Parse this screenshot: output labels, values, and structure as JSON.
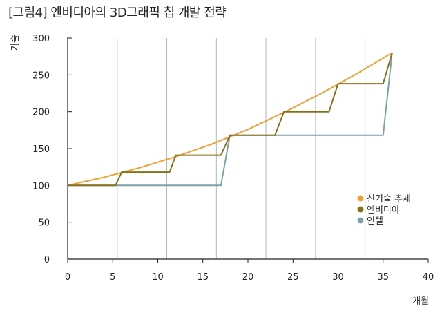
{
  "header": {
    "figure_label": "[그림4]",
    "title": "엔비디아의 3D그래픽 칩 개발 전략"
  },
  "chart_data": {
    "type": "line",
    "xlabel": "개월",
    "ylabel": "기술",
    "xlim": [
      0,
      40
    ],
    "ylim": [
      0,
      300
    ],
    "xticks": [
      0,
      5,
      10,
      15,
      20,
      25,
      30,
      35,
      40
    ],
    "yticks": [
      0,
      50,
      100,
      150,
      200,
      250,
      300
    ],
    "vertical_guides": [
      5.5,
      11,
      16.5,
      22,
      27.5,
      33
    ],
    "grid": false,
    "legend_position": "right",
    "series": [
      {
        "name": "신기술 추세",
        "color": "#f0a033",
        "x": [
          0,
          4,
          8,
          12,
          16,
          20,
          24,
          28,
          32,
          36
        ],
        "y": [
          100,
          111,
          124,
          139,
          156,
          176,
          199,
          224,
          251,
          280
        ]
      },
      {
        "name": "엔비디아",
        "color": "#857218",
        "x": [
          0,
          5.3,
          6,
          11.3,
          12,
          17,
          18,
          23,
          24,
          29,
          30,
          35,
          36
        ],
        "y": [
          100,
          100,
          118,
          118,
          141,
          141,
          168,
          168,
          200,
          200,
          238,
          238,
          280
        ]
      },
      {
        "name": "인텔",
        "color": "#7aa1ad",
        "x": [
          0,
          17,
          18,
          35,
          36
        ],
        "y": [
          100,
          100,
          168,
          168,
          280
        ]
      }
    ]
  }
}
